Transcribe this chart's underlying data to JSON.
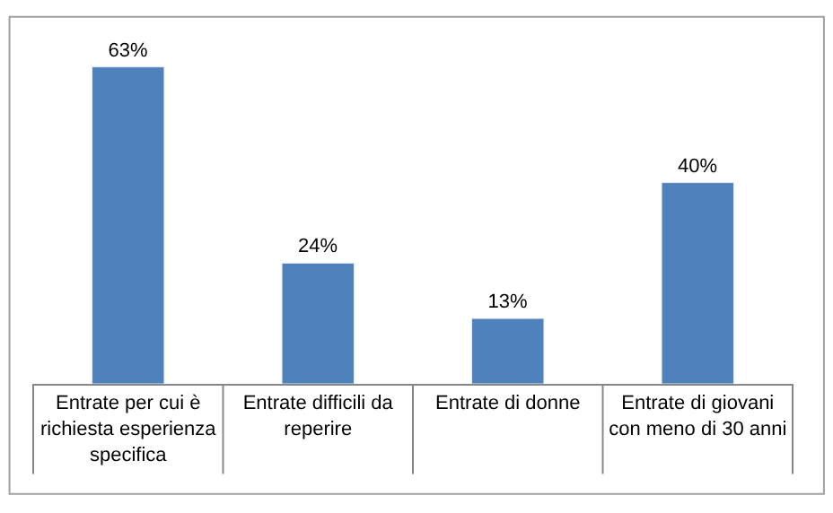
{
  "chart_data": {
    "type": "bar",
    "categories": [
      "Entrate per cui è richiesta esperienza specifica",
      "Entrate difficili da reperire",
      "Entrate di donne",
      "Entrate di giovani con meno di 30 anni"
    ],
    "values": [
      63,
      24,
      13,
      40
    ],
    "value_labels": [
      "63%",
      "24%",
      "13%",
      "40%"
    ],
    "color": "#4f81bd",
    "tick_labels": "x"
  }
}
